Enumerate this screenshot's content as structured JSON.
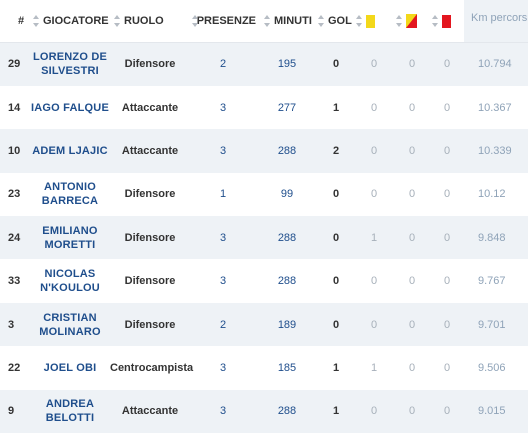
{
  "headers": {
    "num": "#",
    "player": "GIOCATORE",
    "role": "RUOLO",
    "appearances": "PRESENZE",
    "minutes": "MINUTI",
    "goals": "GOL",
    "km": "Km percorsi"
  },
  "colors": {
    "yellow_card": "#f3d81a",
    "red_card": "#e3161f",
    "name_blue": "#1f4e8c",
    "row_alt": "#eef2f6"
  },
  "rows": [
    {
      "num": "29",
      "name_line1": "LORENZO DE",
      "name_line2": "SILVESTRI",
      "role": "Difensore",
      "appearances": "2",
      "minutes": "195",
      "goals": "0",
      "yellow": "0",
      "double_yellow": "0",
      "red": "0",
      "km": "10.794"
    },
    {
      "num": "14",
      "name_line1": "IAGO FALQUE",
      "name_line2": "",
      "role": "Attaccante",
      "appearances": "3",
      "minutes": "277",
      "goals": "1",
      "yellow": "0",
      "double_yellow": "0",
      "red": "0",
      "km": "10.367"
    },
    {
      "num": "10",
      "name_line1": "ADEM LJAJIC",
      "name_line2": "",
      "role": "Attaccante",
      "appearances": "3",
      "minutes": "288",
      "goals": "2",
      "yellow": "0",
      "double_yellow": "0",
      "red": "0",
      "km": "10.339"
    },
    {
      "num": "23",
      "name_line1": "ANTONIO",
      "name_line2": "BARRECA",
      "role": "Difensore",
      "appearances": "1",
      "minutes": "99",
      "goals": "0",
      "yellow": "0",
      "double_yellow": "0",
      "red": "0",
      "km": "10.12"
    },
    {
      "num": "24",
      "name_line1": "EMILIANO",
      "name_line2": "MORETTI",
      "role": "Difensore",
      "appearances": "3",
      "minutes": "288",
      "goals": "0",
      "yellow": "1",
      "double_yellow": "0",
      "red": "0",
      "km": "9.848"
    },
    {
      "num": "33",
      "name_line1": "NICOLAS",
      "name_line2": "N'KOULOU",
      "role": "Difensore",
      "appearances": "3",
      "minutes": "288",
      "goals": "0",
      "yellow": "0",
      "double_yellow": "0",
      "red": "0",
      "km": "9.767"
    },
    {
      "num": "3",
      "name_line1": "CRISTIAN",
      "name_line2": "MOLINARO",
      "role": "Difensore",
      "appearances": "2",
      "minutes": "189",
      "goals": "0",
      "yellow": "0",
      "double_yellow": "0",
      "red": "0",
      "km": "9.701"
    },
    {
      "num": "22",
      "name_line1": "JOEL OBI",
      "name_line2": "",
      "role": "Centrocampista",
      "appearances": "3",
      "minutes": "185",
      "goals": "1",
      "yellow": "1",
      "double_yellow": "0",
      "red": "0",
      "km": "9.506"
    },
    {
      "num": "9",
      "name_line1": "ANDREA",
      "name_line2": "BELOTTI",
      "role": "Attaccante",
      "appearances": "3",
      "minutes": "288",
      "goals": "1",
      "yellow": "0",
      "double_yellow": "0",
      "red": "0",
      "km": "9.015"
    }
  ]
}
